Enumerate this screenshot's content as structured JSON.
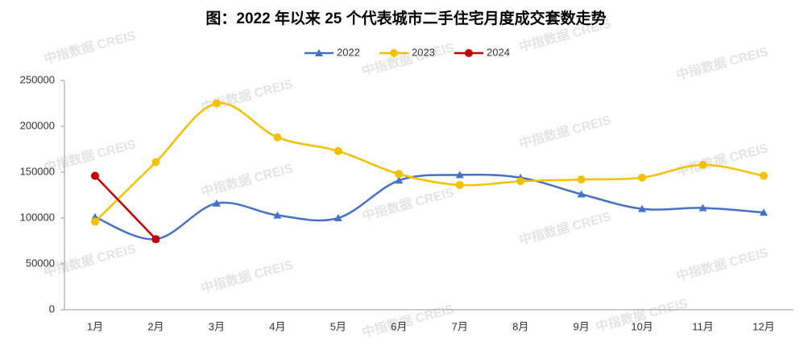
{
  "chart_data": {
    "type": "line",
    "title": "图：2022 年以来 25 个代表城市二手住宅月度成交套数走势",
    "watermark": "中指数据 CREIS",
    "categories": [
      "1月",
      "2月",
      "3月",
      "4月",
      "5月",
      "6月",
      "7月",
      "8月",
      "9月",
      "10月",
      "11月",
      "12月"
    ],
    "series": [
      {
        "name": "2022",
        "color": "#4472c4",
        "marker": "triangle",
        "values": [
          101000,
          77000,
          116000,
          103000,
          100000,
          141000,
          147000,
          144000,
          126000,
          110000,
          111000,
          106000
        ]
      },
      {
        "name": "2023",
        "color": "#f5c000",
        "marker": "circle",
        "values": [
          96000,
          161000,
          225000,
          188000,
          173000,
          148000,
          136000,
          140000,
          142000,
          144000,
          158000,
          146000
        ]
      },
      {
        "name": "2024",
        "color": "#c00000",
        "marker": "circle",
        "values": [
          146000,
          77000,
          null,
          null,
          null,
          null,
          null,
          null,
          null,
          null,
          null,
          null
        ]
      }
    ],
    "ylim": [
      0,
      250000
    ],
    "yticks": [
      0,
      50000,
      100000,
      150000,
      200000,
      250000
    ],
    "grid": false,
    "legend": "top",
    "smooth": true
  }
}
